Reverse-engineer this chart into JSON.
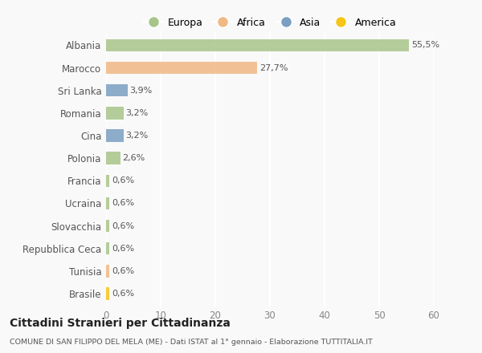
{
  "categories": [
    "Albania",
    "Marocco",
    "Sri Lanka",
    "Romania",
    "Cina",
    "Polonia",
    "Francia",
    "Ucraina",
    "Slovacchia",
    "Repubblica Ceca",
    "Tunisia",
    "Brasile"
  ],
  "values": [
    55.5,
    27.7,
    3.9,
    3.2,
    3.2,
    2.6,
    0.6,
    0.6,
    0.6,
    0.6,
    0.6,
    0.6
  ],
  "labels": [
    "55,5%",
    "27,7%",
    "3,9%",
    "3,2%",
    "3,2%",
    "2,6%",
    "0,6%",
    "0,6%",
    "0,6%",
    "0,6%",
    "0,6%",
    "0,6%"
  ],
  "colors": [
    "#a8c48a",
    "#f0b884",
    "#7a9fc2",
    "#a8c48a",
    "#7a9fc2",
    "#a8c48a",
    "#a8c48a",
    "#a8c48a",
    "#a8c48a",
    "#a8c48a",
    "#f0b884",
    "#f5c518"
  ],
  "legend_labels": [
    "Europa",
    "Africa",
    "Asia",
    "America"
  ],
  "legend_colors": [
    "#a8c48a",
    "#f0b884",
    "#7a9fc2",
    "#f5c518"
  ],
  "xlim": [
    0,
    60
  ],
  "xticks": [
    0,
    10,
    20,
    30,
    40,
    50,
    60
  ],
  "title": "Cittadini Stranieri per Cittadinanza",
  "subtitle": "COMUNE DI SAN FILIPPO DEL MELA (ME) - Dati ISTAT al 1° gennaio - Elaborazione TUTTITALIA.IT",
  "background_color": "#f9f9f9",
  "grid_color": "#ffffff",
  "bar_height": 0.55
}
